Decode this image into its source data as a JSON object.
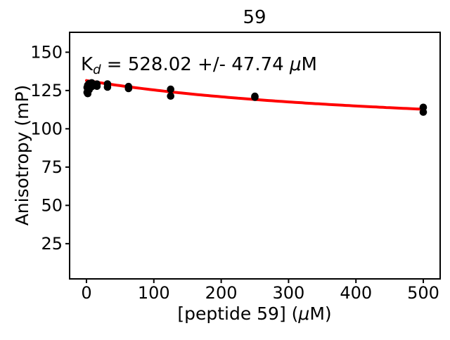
{
  "title": "59",
  "annotation": {
    "k": "K",
    "sub": "d",
    "mid": " = 528.02 +/- 47.74 ",
    "mu": "μ",
    "unit": "M"
  },
  "axes": {
    "xlabel_pre": "[peptide 59] (",
    "xlabel_mu": "μ",
    "xlabel_post": "M)",
    "ylabel": "Anisotropy (mP)",
    "x_ticks": [
      0,
      100,
      200,
      300,
      400,
      500
    ],
    "y_ticks": [
      25,
      50,
      75,
      100,
      125,
      150
    ],
    "xlim": [
      -25,
      525
    ],
    "ylim": [
      2,
      163
    ]
  },
  "colors": {
    "fit_line": "#ff0000",
    "marker": "#000000",
    "text": "#000000",
    "background": "#ffffff"
  },
  "chart_data": {
    "type": "scatter",
    "title": "59",
    "xlabel": "[peptide 59] (μM)",
    "ylabel": "Anisotropy (mP)",
    "xlim": [
      -25,
      525
    ],
    "ylim": [
      2,
      163
    ],
    "grid": false,
    "legend": "none",
    "annotation": "K_d = 528.02 +/- 47.74 μM",
    "points": [
      [
        0.98,
        127.0
      ],
      [
        0.98,
        123.8
      ],
      [
        1.95,
        128.5
      ],
      [
        1.95,
        123.0
      ],
      [
        3.9,
        129.5
      ],
      [
        3.9,
        125.5
      ],
      [
        7.8,
        130.0
      ],
      [
        7.8,
        127.5
      ],
      [
        15.6,
        129.2
      ],
      [
        15.6,
        127.8
      ],
      [
        31.25,
        129.3
      ],
      [
        31.25,
        127.2
      ],
      [
        62.5,
        127.6
      ],
      [
        62.5,
        126.3
      ],
      [
        125,
        125.8
      ],
      [
        125,
        121.4
      ],
      [
        250,
        121.2
      ],
      [
        250,
        120.6
      ],
      [
        500,
        114.0
      ],
      [
        500,
        110.9
      ]
    ],
    "fit": {
      "model": "y = a0 + (ainf - a0) * x / (kd + x)",
      "kd_uM": 528.02,
      "kd_err_uM": 47.74,
      "a0": 131.5,
      "ainf": 93.0,
      "x_range": [
        0,
        500
      ]
    }
  }
}
